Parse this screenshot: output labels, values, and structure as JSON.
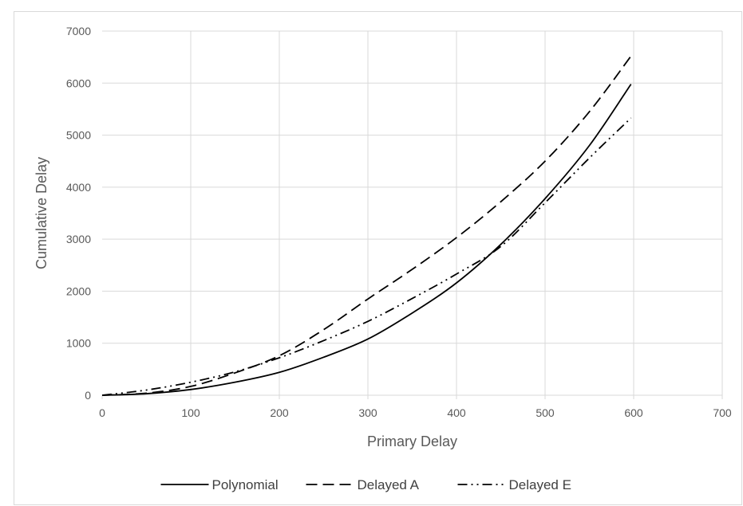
{
  "chart_data": {
    "type": "line",
    "title": "",
    "xlabel": "Primary Delay",
    "ylabel": "Cumulative Delay",
    "xlim": [
      0,
      700
    ],
    "ylim": [
      0,
      7000
    ],
    "xticks": [
      0,
      100,
      200,
      300,
      400,
      500,
      600,
      700
    ],
    "yticks": [
      0,
      1000,
      2000,
      3000,
      4000,
      5000,
      6000,
      7000
    ],
    "grid": true,
    "legend_position": "bottom",
    "colors": {
      "series": "#000000",
      "grid": "#d9d9d9",
      "text": "#595959"
    },
    "series": [
      {
        "name": "Polynomial",
        "style": "solid",
        "x": [
          0,
          50,
          100,
          150,
          200,
          250,
          300,
          350,
          400,
          450,
          500,
          550,
          597
        ],
        "y": [
          0,
          30,
          110,
          250,
          440,
          730,
          1080,
          1580,
          2160,
          2900,
          3780,
          4800,
          5980
        ]
      },
      {
        "name": "Delayed A",
        "style": "dash",
        "x": [
          0,
          50,
          100,
          150,
          200,
          250,
          300,
          350,
          400,
          450,
          500,
          550,
          597
        ],
        "y": [
          0,
          40,
          170,
          430,
          760,
          1260,
          1850,
          2420,
          3030,
          3720,
          4500,
          5450,
          6520
        ]
      },
      {
        "name": "Delayed E",
        "style": "dash-dot-dot",
        "x": [
          0,
          50,
          100,
          150,
          200,
          250,
          300,
          350,
          400,
          450,
          500,
          550,
          597
        ],
        "y": [
          0,
          100,
          250,
          450,
          720,
          1050,
          1420,
          1860,
          2330,
          2860,
          3700,
          4560,
          5330
        ]
      }
    ]
  }
}
